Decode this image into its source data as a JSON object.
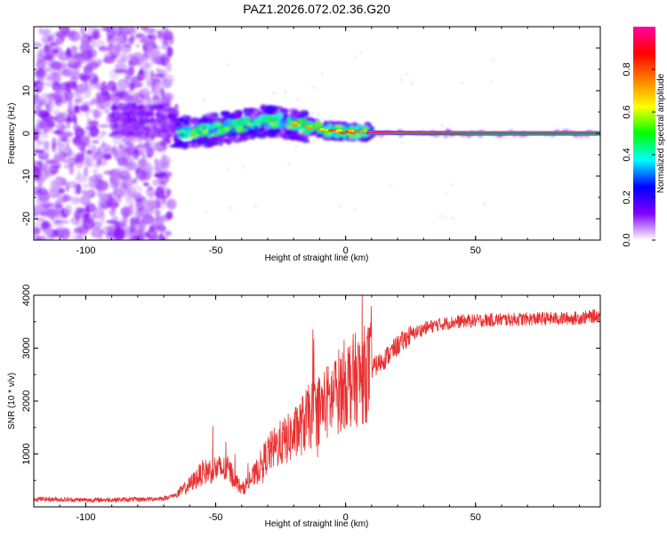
{
  "title": "PAZ1.2026.072.02.36.G20",
  "chart_data": [
    {
      "type": "heatmap",
      "title": "PAZ1.2026.072.02.36.G20",
      "xlabel": "Height of straight line (km)",
      "ylabel": "Frequency (Hz)",
      "xlim": [
        -120,
        98
      ],
      "ylim": [
        -25,
        25
      ],
      "xticks": [
        -100,
        -50,
        0,
        50
      ],
      "xtick_labels": [
        "-100",
        "-50",
        "0",
        "50"
      ],
      "yticks": [
        -20,
        -10,
        0,
        10,
        20
      ],
      "ytick_labels": [
        "-20",
        "-10",
        "0",
        "10",
        "20"
      ],
      "ridge": {
        "x": [
          -65,
          -55,
          -45,
          -35,
          -25,
          -15,
          -5,
          5,
          10,
          20,
          50,
          98
        ],
        "y": [
          0,
          0.5,
          1.5,
          2.5,
          3,
          1.5,
          0.5,
          0.3,
          0.2,
          0.1,
          0,
          0
        ]
      },
      "colorbar": {
        "label": "Normalized spectral amplitude",
        "range": [
          0,
          1
        ],
        "ticks": [
          0.0,
          0.2,
          0.4,
          0.6,
          0.8
        ],
        "tick_labels": [
          "0.0",
          "0.2",
          "0.4",
          "0.6",
          "0.8"
        ],
        "colors": [
          "#ffffff",
          "#8000ff",
          "#0000ff",
          "#00ffff",
          "#00ff00",
          "#ffff00",
          "#ff8000",
          "#ff0000",
          "#ff00a0"
        ]
      }
    },
    {
      "type": "line",
      "xlabel": "Height of straight line (km)",
      "ylabel": "SNR (10 * v/v)",
      "xlim": [
        -120,
        98
      ],
      "ylim": [
        0,
        4000
      ],
      "xticks": [
        -100,
        -50,
        0,
        50
      ],
      "xtick_labels": [
        "-100",
        "-50",
        "0",
        "50"
      ],
      "yticks": [
        1000,
        2000,
        3000,
        4000
      ],
      "ytick_labels": [
        "1000",
        "2000",
        "3000",
        "4000"
      ],
      "color": "#e83030",
      "series": [
        {
          "name": "SNR",
          "x": [
            -120,
            -110,
            -100,
            -90,
            -80,
            -70,
            -65,
            -60,
            -55,
            -50,
            -45,
            -40,
            -35,
            -30,
            -25,
            -20,
            -15,
            -10,
            -5,
            0,
            5,
            10,
            15,
            20,
            25,
            30,
            35,
            40,
            45,
            50,
            55,
            60,
            65,
            70,
            75,
            80,
            85,
            90,
            95,
            98
          ],
          "y": [
            150,
            140,
            130,
            135,
            140,
            160,
            230,
            420,
            650,
            720,
            700,
            330,
            600,
            1000,
            1200,
            1350,
            1650,
            1850,
            2050,
            2350,
            2420,
            2600,
            2800,
            3050,
            3250,
            3370,
            3440,
            3480,
            3510,
            3520,
            3530,
            3540,
            3545,
            3550,
            3555,
            3560,
            3560,
            3570,
            3600,
            3620
          ]
        }
      ]
    }
  ]
}
